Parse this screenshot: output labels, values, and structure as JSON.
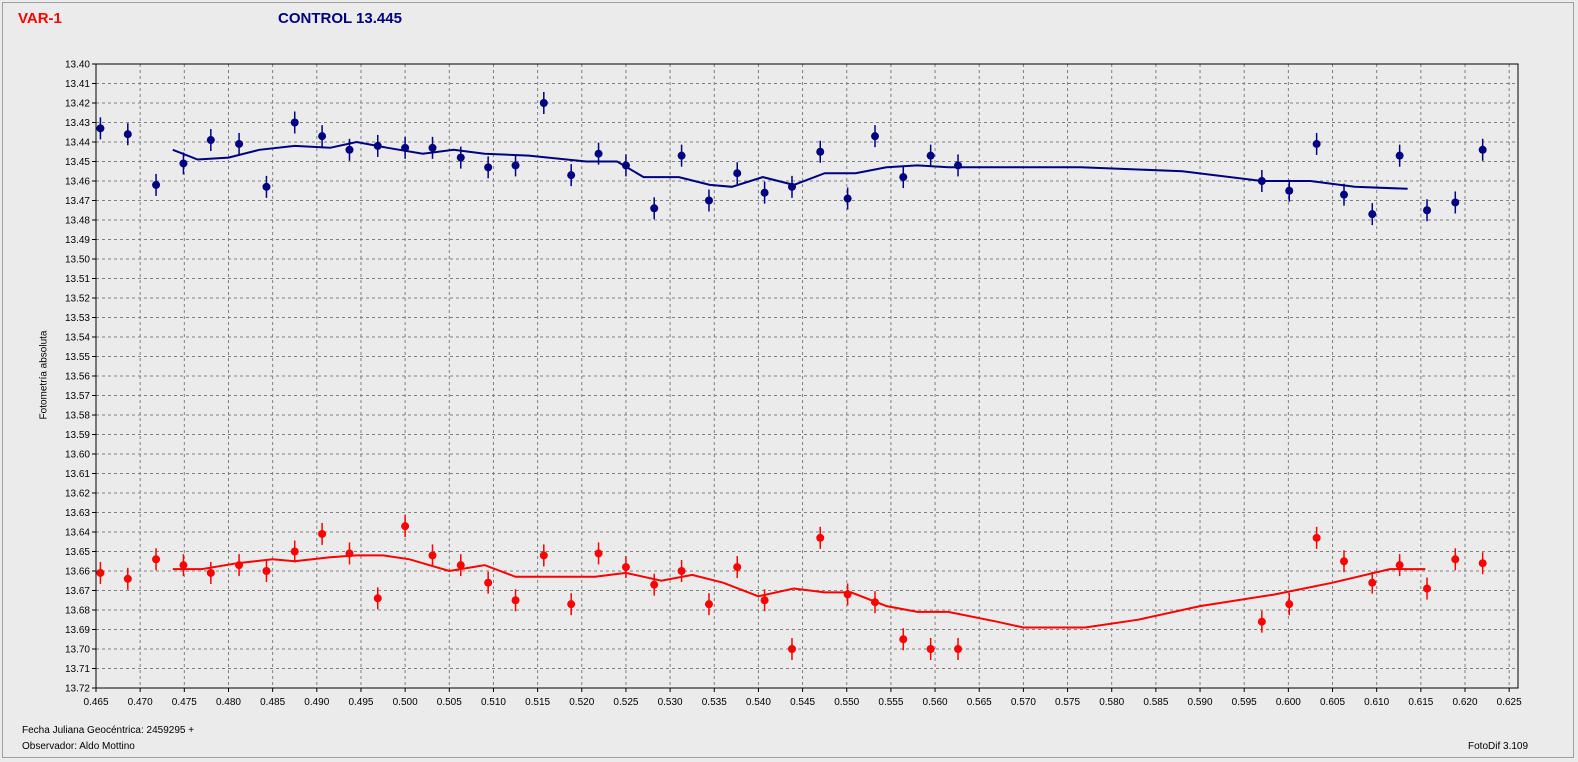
{
  "header": {
    "var_label": "VAR-1",
    "control_label": "CONTROL 13.445"
  },
  "footer": {
    "julian_date_label": "Fecha Juliana Geocéntrica: 2459295 +",
    "observer_label": "Observador: Aldo Mottino",
    "software_label": "FotoDif 3.109"
  },
  "colors": {
    "variable": "#ff0000",
    "control": "#000080",
    "grid": "#7f7f7f"
  },
  "chart_data": {
    "type": "scatter",
    "title": "",
    "xlabel": "Fecha Juliana Geocéntrica: 2459295 +",
    "ylabel": "Fotometría absoluta",
    "xlim": [
      0.465,
      0.626
    ],
    "ylim": [
      13.72,
      13.4
    ],
    "y_inverted": true,
    "grid": true,
    "x_ticks": [
      "0.465",
      "0.470",
      "0.475",
      "0.480",
      "0.485",
      "0.490",
      "0.495",
      "0.500",
      "0.505",
      "0.510",
      "0.515",
      "0.520",
      "0.525",
      "0.530",
      "0.535",
      "0.540",
      "0.545",
      "0.550",
      "0.555",
      "0.560",
      "0.565",
      "0.570",
      "0.575",
      "0.580",
      "0.585",
      "0.590",
      "0.595",
      "0.600",
      "0.605",
      "0.610",
      "0.615",
      "0.620",
      "0.625"
    ],
    "y_ticks": [
      "13.40",
      "13.41",
      "13.42",
      "13.43",
      "13.44",
      "13.45",
      "13.46",
      "13.47",
      "13.48",
      "13.49",
      "13.50",
      "13.51",
      "13.52",
      "13.53",
      "13.54",
      "13.55",
      "13.56",
      "13.57",
      "13.58",
      "13.59",
      "13.60",
      "13.61",
      "13.62",
      "13.63",
      "13.64",
      "13.65",
      "13.66",
      "13.67",
      "13.68",
      "13.69",
      "13.70",
      "13.71",
      "13.72"
    ],
    "series": [
      {
        "name": "CONTROL 13.445",
        "color": "#000080",
        "points": [
          [
            0.4655,
            13.433
          ],
          [
            0.4686,
            13.436
          ],
          [
            0.4718,
            13.462
          ],
          [
            0.4749,
            13.451
          ],
          [
            0.478,
            13.439
          ],
          [
            0.4812,
            13.441
          ],
          [
            0.4843,
            13.463
          ],
          [
            0.4875,
            13.43
          ],
          [
            0.4906,
            13.437
          ],
          [
            0.4937,
            13.444
          ],
          [
            0.4969,
            13.442
          ],
          [
            0.5,
            13.443
          ],
          [
            0.5031,
            13.443
          ],
          [
            0.5063,
            13.448
          ],
          [
            0.5094,
            13.453
          ],
          [
            0.5125,
            13.452
          ],
          [
            0.5157,
            13.42
          ],
          [
            0.5188,
            13.457
          ],
          [
            0.5219,
            13.446
          ],
          [
            0.525,
            13.452
          ],
          [
            0.5282,
            13.474
          ],
          [
            0.5313,
            13.447
          ],
          [
            0.5344,
            13.47
          ],
          [
            0.5376,
            13.456
          ],
          [
            0.5407,
            13.466
          ],
          [
            0.5438,
            13.463
          ],
          [
            0.547,
            13.445
          ],
          [
            0.5501,
            13.469
          ],
          [
            0.5532,
            13.437
          ],
          [
            0.5564,
            13.458
          ],
          [
            0.5595,
            13.447
          ],
          [
            0.5626,
            13.452
          ],
          [
            0.597,
            13.46
          ],
          [
            0.6001,
            13.465
          ],
          [
            0.6032,
            13.441
          ],
          [
            0.6063,
            13.467
          ],
          [
            0.6095,
            13.477
          ],
          [
            0.6126,
            13.447
          ],
          [
            0.6157,
            13.475
          ],
          [
            0.6189,
            13.471
          ],
          [
            0.622,
            13.444
          ]
        ],
        "trend": [
          [
            0.4737,
            13.444
          ],
          [
            0.4765,
            13.449
          ],
          [
            0.48,
            13.448
          ],
          [
            0.4835,
            13.444
          ],
          [
            0.4875,
            13.442
          ],
          [
            0.4915,
            13.443
          ],
          [
            0.4945,
            13.44
          ],
          [
            0.498,
            13.443
          ],
          [
            0.502,
            13.446
          ],
          [
            0.5055,
            13.444
          ],
          [
            0.509,
            13.446
          ],
          [
            0.514,
            13.447
          ],
          [
            0.5205,
            13.45
          ],
          [
            0.524,
            13.45
          ],
          [
            0.527,
            13.458
          ],
          [
            0.531,
            13.458
          ],
          [
            0.5345,
            13.462
          ],
          [
            0.537,
            13.463
          ],
          [
            0.5405,
            13.458
          ],
          [
            0.544,
            13.462
          ],
          [
            0.5475,
            13.456
          ],
          [
            0.551,
            13.456
          ],
          [
            0.5545,
            13.453
          ],
          [
            0.558,
            13.452
          ],
          [
            0.5615,
            13.453
          ],
          [
            0.566,
            13.453
          ],
          [
            0.5765,
            13.453
          ],
          [
            0.588,
            13.455
          ],
          [
            0.597,
            13.46
          ],
          [
            0.6025,
            13.46
          ],
          [
            0.6075,
            13.463
          ],
          [
            0.6135,
            13.464
          ]
        ]
      },
      {
        "name": "VAR-1",
        "color": "#ff0000",
        "points": [
          [
            0.4655,
            13.661
          ],
          [
            0.4686,
            13.664
          ],
          [
            0.4718,
            13.654
          ],
          [
            0.4749,
            13.657
          ],
          [
            0.478,
            13.661
          ],
          [
            0.4812,
            13.657
          ],
          [
            0.4843,
            13.66
          ],
          [
            0.4875,
            13.65
          ],
          [
            0.4906,
            13.641
          ],
          [
            0.4937,
            13.651
          ],
          [
            0.4969,
            13.674
          ],
          [
            0.5,
            13.637
          ],
          [
            0.5031,
            13.652
          ],
          [
            0.5063,
            13.657
          ],
          [
            0.5094,
            13.666
          ],
          [
            0.5125,
            13.675
          ],
          [
            0.5157,
            13.652
          ],
          [
            0.5188,
            13.677
          ],
          [
            0.5219,
            13.651
          ],
          [
            0.525,
            13.658
          ],
          [
            0.5282,
            13.667
          ],
          [
            0.5313,
            13.66
          ],
          [
            0.5344,
            13.677
          ],
          [
            0.5376,
            13.658
          ],
          [
            0.5407,
            13.675
          ],
          [
            0.5438,
            13.7
          ],
          [
            0.547,
            13.643
          ],
          [
            0.5501,
            13.672
          ],
          [
            0.5532,
            13.676
          ],
          [
            0.5564,
            13.695
          ],
          [
            0.5595,
            13.7
          ],
          [
            0.5626,
            13.7
          ],
          [
            0.597,
            13.686
          ],
          [
            0.6001,
            13.677
          ],
          [
            0.6032,
            13.643
          ],
          [
            0.6063,
            13.655
          ],
          [
            0.6095,
            13.666
          ],
          [
            0.6126,
            13.657
          ],
          [
            0.6157,
            13.669
          ],
          [
            0.6189,
            13.654
          ],
          [
            0.622,
            13.656
          ]
        ],
        "trend": [
          [
            0.4737,
            13.659
          ],
          [
            0.477,
            13.659
          ],
          [
            0.481,
            13.656
          ],
          [
            0.485,
            13.654
          ],
          [
            0.4875,
            13.655
          ],
          [
            0.4915,
            13.653
          ],
          [
            0.4945,
            13.652
          ],
          [
            0.4975,
            13.652
          ],
          [
            0.5005,
            13.654
          ],
          [
            0.505,
            13.66
          ],
          [
            0.509,
            13.657
          ],
          [
            0.5125,
            13.663
          ],
          [
            0.5215,
            13.663
          ],
          [
            0.525,
            13.661
          ],
          [
            0.529,
            13.665
          ],
          [
            0.5325,
            13.662
          ],
          [
            0.536,
            13.666
          ],
          [
            0.54,
            13.673
          ],
          [
            0.544,
            13.669
          ],
          [
            0.5475,
            13.671
          ],
          [
            0.5505,
            13.671
          ],
          [
            0.5545,
            13.678
          ],
          [
            0.558,
            13.681
          ],
          [
            0.5615,
            13.681
          ],
          [
            0.567,
            13.686
          ],
          [
            0.57,
            13.689
          ],
          [
            0.577,
            13.689
          ],
          [
            0.583,
            13.685
          ],
          [
            0.59,
            13.678
          ],
          [
            0.5985,
            13.672
          ],
          [
            0.605,
            13.666
          ],
          [
            0.6115,
            13.659
          ],
          [
            0.6155,
            13.659
          ]
        ]
      }
    ]
  }
}
